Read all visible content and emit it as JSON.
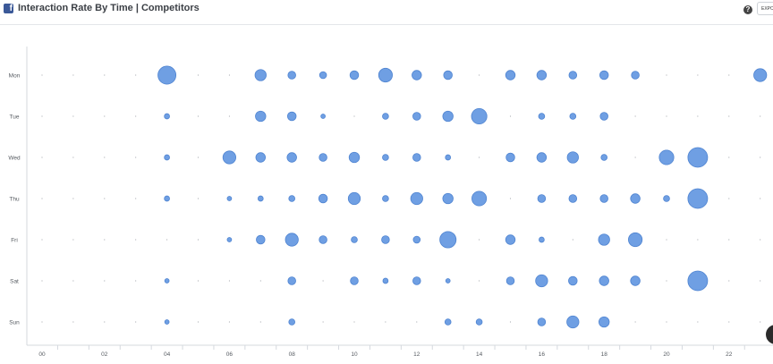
{
  "header": {
    "title": "Interaction Rate By Time | Competitors",
    "fb_icon": "facebook-icon",
    "help_icon": "question-icon",
    "help_glyph": "?",
    "export_label": "EXPO"
  },
  "colors": {
    "bubble": "#6f9fe3",
    "bubble_stroke": "#4f84d1",
    "dot": "#8a8f96",
    "axis": "#d5d9de",
    "text": "#555a60"
  },
  "chart_data": {
    "type": "scatter",
    "title": "Interaction Rate By Time | Competitors",
    "days": [
      "Mon",
      "Tue",
      "Wed",
      "Thu",
      "Fri",
      "Sat",
      "Sun"
    ],
    "x_ticks": [
      "00",
      "02",
      "04",
      "06",
      "08",
      "10",
      "12",
      "14",
      "16",
      "18",
      "20",
      "22"
    ],
    "x_range": [
      0,
      23
    ],
    "grid": false,
    "size_note": "bubble size = relative interaction rate (0-10)",
    "points": [
      {
        "day": "Mon",
        "hour": 4,
        "size": 9
      },
      {
        "day": "Mon",
        "hour": 7,
        "size": 5
      },
      {
        "day": "Mon",
        "hour": 8,
        "size": 3
      },
      {
        "day": "Mon",
        "hour": 9,
        "size": 2.5
      },
      {
        "day": "Mon",
        "hour": 10,
        "size": 3.5
      },
      {
        "day": "Mon",
        "hour": 11,
        "size": 6.5
      },
      {
        "day": "Mon",
        "hour": 12,
        "size": 4
      },
      {
        "day": "Mon",
        "hour": 13,
        "size": 3.5
      },
      {
        "day": "Mon",
        "hour": 15,
        "size": 4
      },
      {
        "day": "Mon",
        "hour": 16,
        "size": 4
      },
      {
        "day": "Mon",
        "hour": 17,
        "size": 3
      },
      {
        "day": "Mon",
        "hour": 18,
        "size": 3.5
      },
      {
        "day": "Mon",
        "hour": 19,
        "size": 3
      },
      {
        "day": "Mon",
        "hour": 23,
        "size": 6
      },
      {
        "day": "Tue",
        "hour": 4,
        "size": 1.5
      },
      {
        "day": "Tue",
        "hour": 7,
        "size": 4.5
      },
      {
        "day": "Tue",
        "hour": 8,
        "size": 3.5
      },
      {
        "day": "Tue",
        "hour": 9,
        "size": 1
      },
      {
        "day": "Tue",
        "hour": 11,
        "size": 2
      },
      {
        "day": "Tue",
        "hour": 12,
        "size": 3
      },
      {
        "day": "Tue",
        "hour": 13,
        "size": 4.5
      },
      {
        "day": "Tue",
        "hour": 14,
        "size": 7.5
      },
      {
        "day": "Tue",
        "hour": 16,
        "size": 2
      },
      {
        "day": "Tue",
        "hour": 17,
        "size": 2
      },
      {
        "day": "Tue",
        "hour": 18,
        "size": 3
      },
      {
        "day": "Wed",
        "hour": 4,
        "size": 1.5
      },
      {
        "day": "Wed",
        "hour": 6,
        "size": 6
      },
      {
        "day": "Wed",
        "hour": 7,
        "size": 4
      },
      {
        "day": "Wed",
        "hour": 8,
        "size": 4
      },
      {
        "day": "Wed",
        "hour": 9,
        "size": 3
      },
      {
        "day": "Wed",
        "hour": 10,
        "size": 4.5
      },
      {
        "day": "Wed",
        "hour": 11,
        "size": 2
      },
      {
        "day": "Wed",
        "hour": 12,
        "size": 3
      },
      {
        "day": "Wed",
        "hour": 13,
        "size": 1.5
      },
      {
        "day": "Wed",
        "hour": 15,
        "size": 3.5
      },
      {
        "day": "Wed",
        "hour": 16,
        "size": 4
      },
      {
        "day": "Wed",
        "hour": 17,
        "size": 5
      },
      {
        "day": "Wed",
        "hour": 18,
        "size": 2
      },
      {
        "day": "Wed",
        "hour": 20,
        "size": 7
      },
      {
        "day": "Wed",
        "hour": 21,
        "size": 10
      },
      {
        "day": "Thu",
        "hour": 4,
        "size": 1.5
      },
      {
        "day": "Thu",
        "hour": 6,
        "size": 1
      },
      {
        "day": "Thu",
        "hour": 7,
        "size": 1.5
      },
      {
        "day": "Thu",
        "hour": 8,
        "size": 2
      },
      {
        "day": "Thu",
        "hour": 9,
        "size": 3.5
      },
      {
        "day": "Thu",
        "hour": 10,
        "size": 5.5
      },
      {
        "day": "Thu",
        "hour": 11,
        "size": 2
      },
      {
        "day": "Thu",
        "hour": 12,
        "size": 5.5
      },
      {
        "day": "Thu",
        "hour": 13,
        "size": 4.5
      },
      {
        "day": "Thu",
        "hour": 14,
        "size": 7
      },
      {
        "day": "Thu",
        "hour": 16,
        "size": 3
      },
      {
        "day": "Thu",
        "hour": 17,
        "size": 3
      },
      {
        "day": "Thu",
        "hour": 18,
        "size": 3
      },
      {
        "day": "Thu",
        "hour": 19,
        "size": 4
      },
      {
        "day": "Thu",
        "hour": 20,
        "size": 2
      },
      {
        "day": "Thu",
        "hour": 21,
        "size": 10
      },
      {
        "day": "Fri",
        "hour": 6,
        "size": 1
      },
      {
        "day": "Fri",
        "hour": 7,
        "size": 3.5
      },
      {
        "day": "Fri",
        "hour": 8,
        "size": 6
      },
      {
        "day": "Fri",
        "hour": 9,
        "size": 3
      },
      {
        "day": "Fri",
        "hour": 10,
        "size": 2
      },
      {
        "day": "Fri",
        "hour": 11,
        "size": 3
      },
      {
        "day": "Fri",
        "hour": 12,
        "size": 2.5
      },
      {
        "day": "Fri",
        "hour": 13,
        "size": 8
      },
      {
        "day": "Fri",
        "hour": 15,
        "size": 4
      },
      {
        "day": "Fri",
        "hour": 16,
        "size": 1.5
      },
      {
        "day": "Fri",
        "hour": 18,
        "size": 5
      },
      {
        "day": "Fri",
        "hour": 19,
        "size": 6.5
      },
      {
        "day": "Sat",
        "hour": 4,
        "size": 1
      },
      {
        "day": "Sat",
        "hour": 8,
        "size": 3
      },
      {
        "day": "Sat",
        "hour": 10,
        "size": 3
      },
      {
        "day": "Sat",
        "hour": 11,
        "size": 1.5
      },
      {
        "day": "Sat",
        "hour": 12,
        "size": 3
      },
      {
        "day": "Sat",
        "hour": 13,
        "size": 1
      },
      {
        "day": "Sat",
        "hour": 15,
        "size": 3
      },
      {
        "day": "Sat",
        "hour": 16,
        "size": 5.5
      },
      {
        "day": "Sat",
        "hour": 17,
        "size": 3.5
      },
      {
        "day": "Sat",
        "hour": 18,
        "size": 4
      },
      {
        "day": "Sat",
        "hour": 19,
        "size": 4
      },
      {
        "day": "Sat",
        "hour": 21,
        "size": 10
      },
      {
        "day": "Sun",
        "hour": 4,
        "size": 1
      },
      {
        "day": "Sun",
        "hour": 8,
        "size": 2
      },
      {
        "day": "Sun",
        "hour": 13,
        "size": 2
      },
      {
        "day": "Sun",
        "hour": 14,
        "size": 2
      },
      {
        "day": "Sun",
        "hour": 16,
        "size": 3
      },
      {
        "day": "Sun",
        "hour": 17,
        "size": 5.5
      },
      {
        "day": "Sun",
        "hour": 18,
        "size": 4.5
      }
    ]
  }
}
